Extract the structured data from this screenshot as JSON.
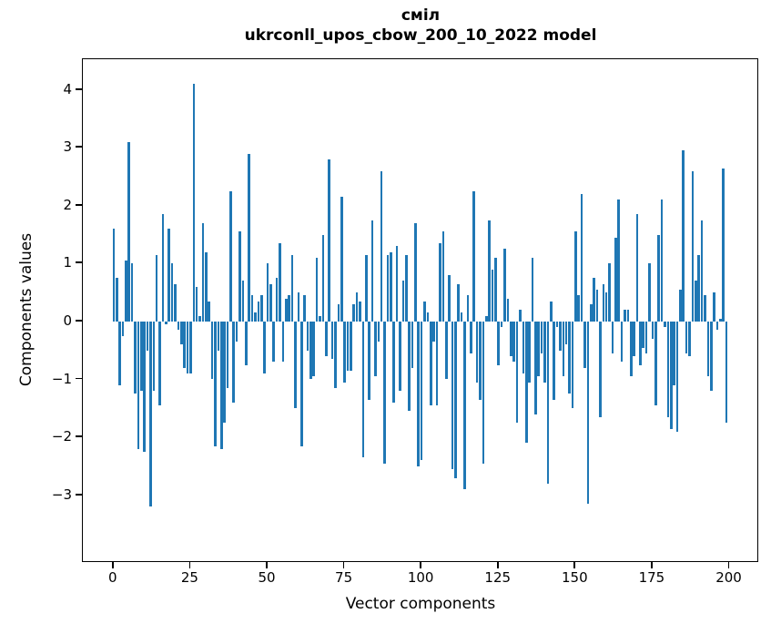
{
  "figure": {
    "background": "#ffffff",
    "title_line1": "сміл",
    "title_line2": "ukrconll_upos_cbow_200_10_2022 model"
  },
  "chart_data": {
    "type": "bar",
    "title": "сміл — ukrconll_upos_cbow_200_10_2022 model",
    "xlabel": "Vector components",
    "ylabel": "Components values",
    "bar_color": "#1f77b4",
    "axis_color": "#000000",
    "grid": false,
    "legend": "none",
    "xlim": [
      -10.0,
      209.6
    ],
    "ylim": [
      -4.17,
      4.53
    ],
    "x_ticks": [
      {
        "v": 0,
        "label": "0"
      },
      {
        "v": 25,
        "label": "25"
      },
      {
        "v": 50,
        "label": "50"
      },
      {
        "v": 75,
        "label": "75"
      },
      {
        "v": 100,
        "label": "100"
      },
      {
        "v": 125,
        "label": "125"
      },
      {
        "v": 150,
        "label": "150"
      },
      {
        "v": 175,
        "label": "175"
      },
      {
        "v": 200,
        "label": "200"
      }
    ],
    "y_ticks": [
      {
        "v": -3,
        "label": "−3"
      },
      {
        "v": -2,
        "label": "−2"
      },
      {
        "v": -1,
        "label": "−1"
      },
      {
        "v": 0,
        "label": "0"
      },
      {
        "v": 1,
        "label": "1"
      },
      {
        "v": 2,
        "label": "2"
      },
      {
        "v": 3,
        "label": "3"
      },
      {
        "v": 4,
        "label": "4"
      }
    ],
    "values": [
      1.6,
      0.75,
      -1.1,
      -0.25,
      1.05,
      3.1,
      1.0,
      -1.25,
      -2.2,
      -1.2,
      -2.25,
      -0.5,
      -3.2,
      -1.2,
      1.15,
      -1.45,
      1.85,
      -0.05,
      1.6,
      1.0,
      0.65,
      -0.15,
      -0.4,
      -0.8,
      -0.9,
      -0.9,
      4.1,
      0.6,
      0.1,
      1.7,
      1.2,
      0.35,
      -1.0,
      -2.15,
      -0.5,
      -2.2,
      -1.75,
      -1.15,
      2.25,
      -1.4,
      -0.35,
      1.55,
      0.7,
      -0.75,
      2.9,
      0.45,
      0.15,
      0.35,
      0.45,
      -0.9,
      1.0,
      0.65,
      -0.7,
      0.75,
      1.35,
      -0.7,
      0.4,
      0.45,
      1.15,
      -1.5,
      0.5,
      -2.15,
      0.45,
      -0.5,
      -1.0,
      -0.95,
      1.1,
      0.1,
      1.5,
      -0.6,
      2.8,
      -0.65,
      -1.15,
      0.3,
      2.15,
      -1.05,
      -0.85,
      -0.85,
      0.3,
      0.5,
      0.35,
      -2.35,
      1.15,
      -1.35,
      1.75,
      -0.95,
      -0.35,
      2.6,
      -2.45,
      1.15,
      1.2,
      -1.4,
      1.3,
      -1.2,
      0.7,
      1.15,
      -1.55,
      -0.8,
      1.7,
      -2.5,
      -2.4,
      0.35,
      0.15,
      -1.45,
      -0.35,
      -1.45,
      1.35,
      1.55,
      -1.0,
      0.8,
      -2.55,
      -2.7,
      0.65,
      0.15,
      -2.9,
      0.45,
      -0.55,
      2.25,
      -1.05,
      -1.35,
      -2.45,
      0.1,
      1.75,
      0.9,
      1.1,
      -0.75,
      -0.1,
      1.25,
      0.4,
      -0.6,
      -0.7,
      -1.75,
      0.2,
      -0.9,
      -2.1,
      -1.05,
      1.1,
      -1.6,
      -0.95,
      -0.55,
      -1.05,
      -2.8,
      0.35,
      -1.35,
      -0.1,
      -0.5,
      -0.95,
      -0.4,
      -1.25,
      -1.5,
      1.55,
      0.45,
      2.2,
      -0.8,
      -3.15,
      0.3,
      0.75,
      0.55,
      -1.65,
      0.65,
      0.5,
      1.0,
      -0.55,
      1.45,
      2.1,
      -0.7,
      0.2,
      0.2,
      -0.95,
      -0.6,
      1.85,
      -0.75,
      -0.45,
      -0.55,
      1.0,
      -0.3,
      -1.45,
      1.5,
      2.1,
      -0.1,
      -1.65,
      -1.85,
      -1.1,
      -1.9,
      0.55,
      2.95,
      -0.55,
      -0.6,
      2.6,
      0.7,
      1.15,
      1.75,
      0.45,
      -0.95,
      -1.2,
      0.5,
      -0.15,
      0.05,
      2.65,
      -1.75
    ]
  }
}
